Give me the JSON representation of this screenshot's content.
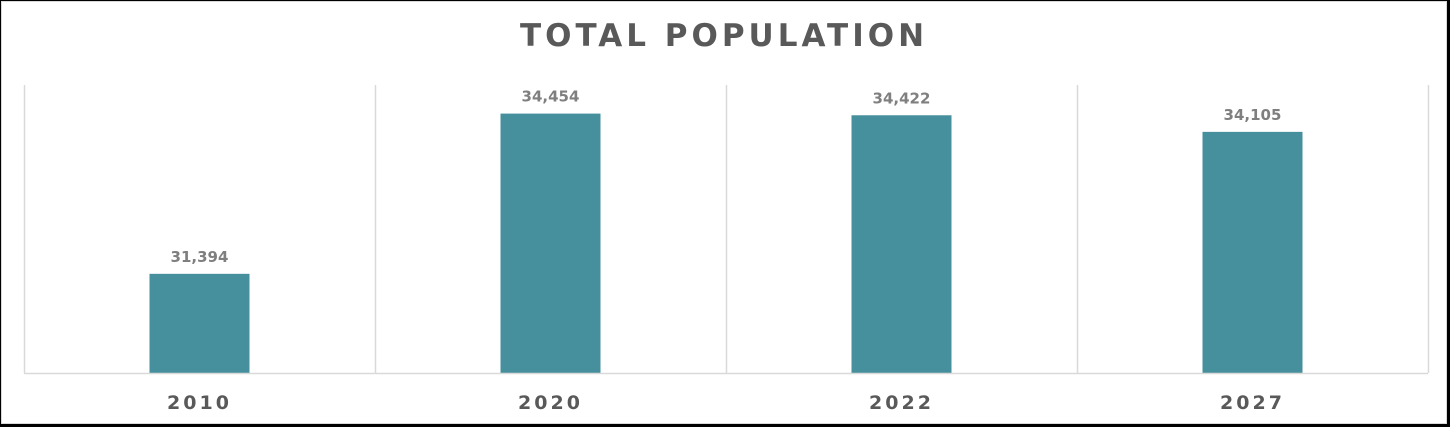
{
  "chart_data": {
    "type": "bar",
    "title": "TOTAL POPULATION",
    "categories": [
      "2010",
      "2020",
      "2022",
      "2027"
    ],
    "values": [
      31394,
      34454,
      34422,
      34105
    ],
    "data_labels": [
      "31,394",
      "34,454",
      "34,422",
      "34,105"
    ],
    "xlabel": "",
    "ylabel": "",
    "ylim": [
      29500,
      35000
    ],
    "y_axis_visible": false,
    "grid": "vertical category separators",
    "legend": "none",
    "bar_color": "#468f9c"
  }
}
